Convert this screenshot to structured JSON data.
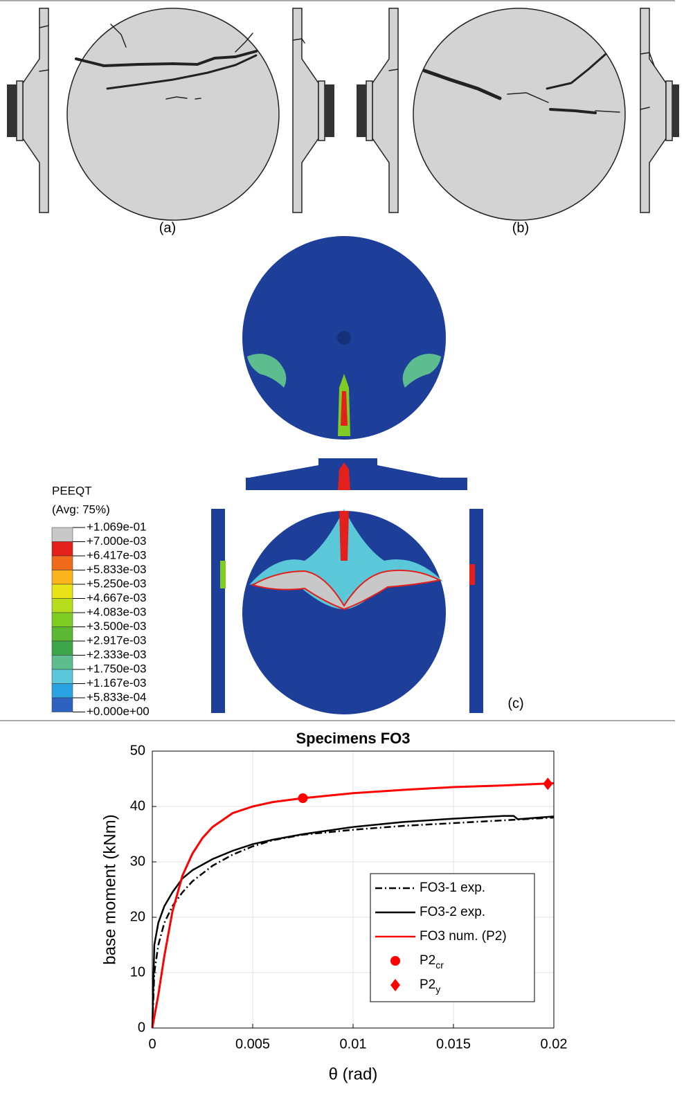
{
  "panel_labels": {
    "a": "(a)",
    "b": "(b)",
    "c": "(c)"
  },
  "contour_legend": {
    "title": "PEEQT",
    "subtitle": "(Avg: 75%)",
    "labels": [
      "+1.069e-01",
      "+7.000e-03",
      "+6.417e-03",
      "+5.833e-03",
      "+5.250e-03",
      "+4.667e-03",
      "+4.083e-03",
      "+3.500e-03",
      "+2.917e-03",
      "+2.333e-03",
      "+1.750e-03",
      "+1.167e-03",
      "+5.833e-04",
      "+0.000e+00"
    ],
    "colors": [
      "#c8c8c8",
      "#e3201b",
      "#f06a1c",
      "#f9b51b",
      "#e8e21a",
      "#b8dd1c",
      "#7fcc24",
      "#5cb832",
      "#3ea64a",
      "#5dbd8f",
      "#5ac8d8",
      "#2aa3e3",
      "#2e62c0",
      "#1d3f9a"
    ]
  },
  "chart_data": {
    "type": "line",
    "title": "Specimens FO3",
    "xlabel": "θ (rad)",
    "ylabel": "base moment (kNm)",
    "xlim": [
      0,
      0.02
    ],
    "ylim": [
      0,
      50
    ],
    "xticks": [
      0,
      0.005,
      0.01,
      0.015,
      0.02
    ],
    "yticks": [
      0,
      10,
      20,
      30,
      40,
      50
    ],
    "grid": true,
    "series": [
      {
        "name": "FO3-1 exp.",
        "color": "#000000",
        "dash": "dashdot",
        "x": [
          0,
          0.0001,
          0.0003,
          0.0006,
          0.001,
          0.0015,
          0.002,
          0.003,
          0.004,
          0.005,
          0.006,
          0.0075,
          0.01,
          0.0125,
          0.015,
          0.0175,
          0.02
        ],
        "values": [
          0,
          10,
          15,
          19,
          22,
          24.5,
          26.5,
          29.3,
          31.3,
          32.8,
          33.9,
          34.9,
          35.8,
          36.5,
          37,
          37.5,
          38
        ]
      },
      {
        "name": "FO3-2 exp.",
        "color": "#000000",
        "dash": "solid",
        "x": [
          0,
          0.0001,
          0.0003,
          0.0006,
          0.001,
          0.0015,
          0.002,
          0.003,
          0.004,
          0.005,
          0.006,
          0.0075,
          0.01,
          0.0125,
          0.015,
          0.0175,
          0.018,
          0.0182,
          0.02
        ],
        "values": [
          0,
          15,
          19,
          22,
          24.5,
          27,
          28.5,
          30.5,
          32,
          33.2,
          34,
          35,
          36.3,
          37.2,
          37.8,
          38.3,
          38.3,
          37.7,
          38.2
        ]
      },
      {
        "name": "FO3 num. (P2)",
        "color": "#ff0000",
        "dash": "solid",
        "x": [
          0,
          0.0003,
          0.0006,
          0.001,
          0.0015,
          0.002,
          0.0025,
          0.003,
          0.004,
          0.005,
          0.006,
          0.0075,
          0.01,
          0.0125,
          0.015,
          0.0175,
          0.02
        ],
        "values": [
          0,
          6,
          13,
          21,
          27.5,
          31.5,
          34.3,
          36.3,
          38.8,
          40,
          40.8,
          41.5,
          42.4,
          43,
          43.5,
          43.8,
          44.2
        ]
      },
      {
        "name": "P2",
        "subscript": "cr",
        "color": "#ff0000",
        "marker": "circle",
        "x": [
          0.0075
        ],
        "values": [
          41.5
        ]
      },
      {
        "name": "P2",
        "subscript": "y",
        "color": "#ff0000",
        "marker": "diamond",
        "x": [
          0.0197
        ],
        "values": [
          44.1
        ]
      }
    ]
  }
}
